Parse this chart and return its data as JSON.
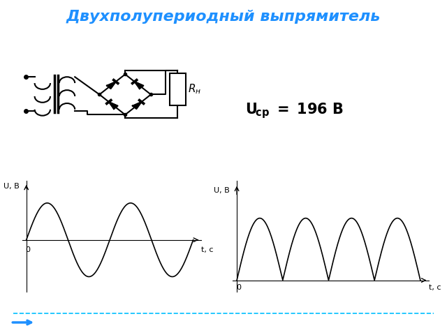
{
  "title": "Двухполупериодный выпрямитель",
  "title_color": "#1E90FF",
  "title_fontsize": 16,
  "formula_fontsize": 15,
  "ylabel_left": "U, В",
  "ylabel_right": "U, В",
  "xlabel_left": "t, с",
  "xlabel_right": "t, с",
  "bg_color": "#FFFFFF",
  "signal_color": "#000000",
  "dashed_line_color": "#00BFFF",
  "arrow_color": "#1E90FF"
}
